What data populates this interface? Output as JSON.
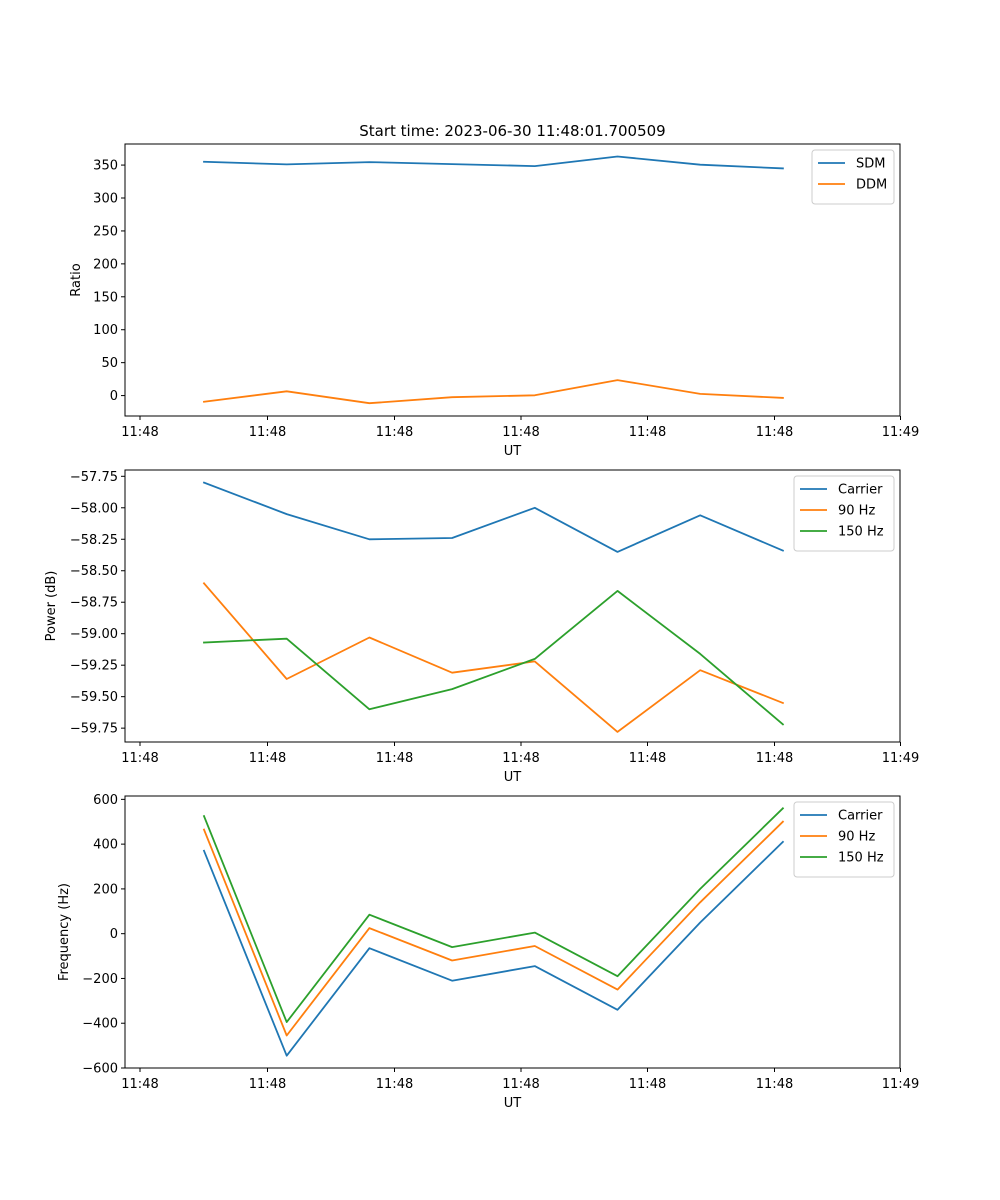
{
  "figure_title": "Start time: 2023-06-30 11:48:01.700509",
  "chart_data": [
    {
      "type": "line",
      "title": "Start time: 2023-06-30 11:48:01.700509",
      "xlabel": "UT",
      "ylabel": "Ratio",
      "x_tick_labels": [
        "11:48",
        "11:48",
        "11:48",
        "11:48",
        "11:48",
        "11:48",
        "11:49"
      ],
      "y_ticks": [
        0,
        50,
        100,
        150,
        200,
        250,
        300,
        350
      ],
      "y_tick_labels": [
        "0",
        "50",
        "100",
        "150",
        "200",
        "250",
        "300",
        "350"
      ],
      "ylim": [
        -31,
        382
      ],
      "legend_position": "top-right",
      "x": [
        1,
        2,
        3,
        4,
        5,
        6,
        7,
        8
      ],
      "series": [
        {
          "name": "SDM",
          "color": "#1f77b4",
          "values": [
            355,
            351,
            354.5,
            351.5,
            348.5,
            363,
            350.5,
            345
          ]
        },
        {
          "name": "DDM",
          "color": "#ff7f0e",
          "values": [
            -9.5,
            6.5,
            -11.5,
            -2.5,
            0.5,
            23.5,
            2.5,
            -3.5
          ]
        }
      ]
    },
    {
      "type": "line",
      "title": "",
      "xlabel": "UT",
      "ylabel": "Power (dB)",
      "x_tick_labels": [
        "11:48",
        "11:48",
        "11:48",
        "11:48",
        "11:48",
        "11:48",
        "11:49"
      ],
      "y_ticks": [
        -57.75,
        -58.0,
        -58.25,
        -58.5,
        -58.75,
        -59.0,
        -59.25,
        -59.5,
        -59.75
      ],
      "y_tick_labels": [
        "−57.75",
        "−58.00",
        "−58.25",
        "−58.50",
        "−58.75",
        "−59.00",
        "−59.25",
        "−59.50",
        "−59.75"
      ],
      "ylim": [
        -59.86,
        -57.7
      ],
      "legend_position": "top-right",
      "x": [
        1,
        2,
        3,
        4,
        5,
        6,
        7,
        8
      ],
      "series": [
        {
          "name": "Carrier",
          "color": "#1f77b4",
          "values": [
            -57.8,
            -58.05,
            -58.25,
            -58.24,
            -58.0,
            -58.35,
            -58.06,
            -58.34
          ]
        },
        {
          "name": "90 Hz",
          "color": "#ff7f0e",
          "values": [
            -58.6,
            -59.36,
            -59.03,
            -59.31,
            -59.22,
            -59.78,
            -59.29,
            -59.55
          ]
        },
        {
          "name": "150 Hz",
          "color": "#2ca02c",
          "values": [
            -59.07,
            -59.04,
            -59.6,
            -59.44,
            -59.2,
            -58.66,
            -59.16,
            -59.72
          ]
        }
      ]
    },
    {
      "type": "line",
      "title": "",
      "xlabel": "UT",
      "ylabel": "Frequency (Hz)",
      "x_tick_labels": [
        "11:48",
        "11:48",
        "11:48",
        "11:48",
        "11:48",
        "11:48",
        "11:49"
      ],
      "y_ticks": [
        -600,
        -400,
        -200,
        0,
        200,
        400,
        600
      ],
      "y_tick_labels": [
        "−600",
        "−400",
        "−200",
        "0",
        "200",
        "400",
        "600"
      ],
      "ylim": [
        -600,
        615
      ],
      "legend_position": "top-right",
      "x": [
        1,
        2,
        3,
        4,
        5,
        6,
        7,
        8
      ],
      "series": [
        {
          "name": "Carrier",
          "color": "#1f77b4",
          "values": [
            370,
            -545,
            -65,
            -210,
            -145,
            -340,
            50,
            410
          ]
        },
        {
          "name": "90 Hz",
          "color": "#ff7f0e",
          "values": [
            465,
            -455,
            25,
            -120,
            -55,
            -250,
            140,
            500
          ]
        },
        {
          "name": "150 Hz",
          "color": "#2ca02c",
          "values": [
            525,
            -395,
            85,
            -60,
            5,
            -190,
            200,
            560
          ]
        }
      ]
    }
  ]
}
